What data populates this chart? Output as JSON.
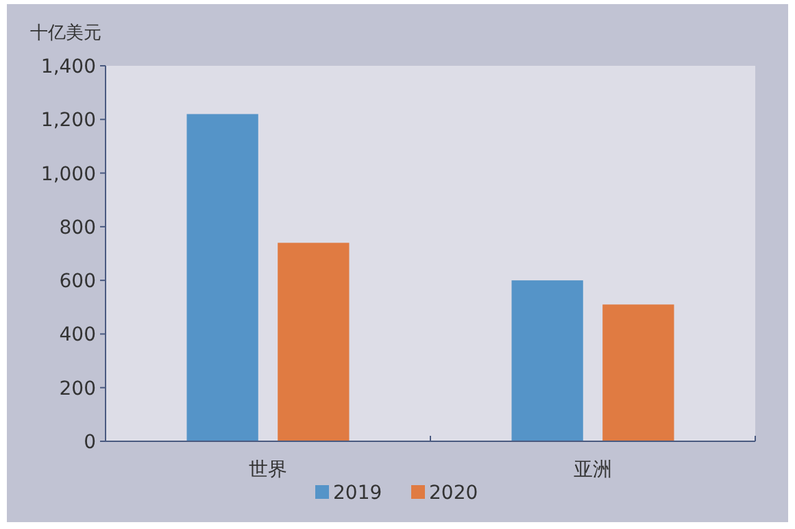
{
  "chart_data": {
    "type": "bar",
    "ylabel": "十亿美元",
    "categories": [
      "世界",
      "亚洲"
    ],
    "series": [
      {
        "name": "2019",
        "color": "#5594c8",
        "values": [
          1220,
          600
        ]
      },
      {
        "name": "2020",
        "color": "#e07b42",
        "values": [
          740,
          510
        ]
      }
    ],
    "ylim": [
      0,
      1400
    ],
    "yticks": [
      {
        "value": 0,
        "label": "0"
      },
      {
        "value": 200,
        "label": "200"
      },
      {
        "value": 400,
        "label": "400"
      },
      {
        "value": 600,
        "label": "600"
      },
      {
        "value": 800,
        "label": "800"
      },
      {
        "value": 1000,
        "label": "1,000"
      },
      {
        "value": 1200,
        "label": "1,200"
      },
      {
        "value": 1400,
        "label": "1,400"
      }
    ],
    "grid": false,
    "legend": "bottom"
  }
}
